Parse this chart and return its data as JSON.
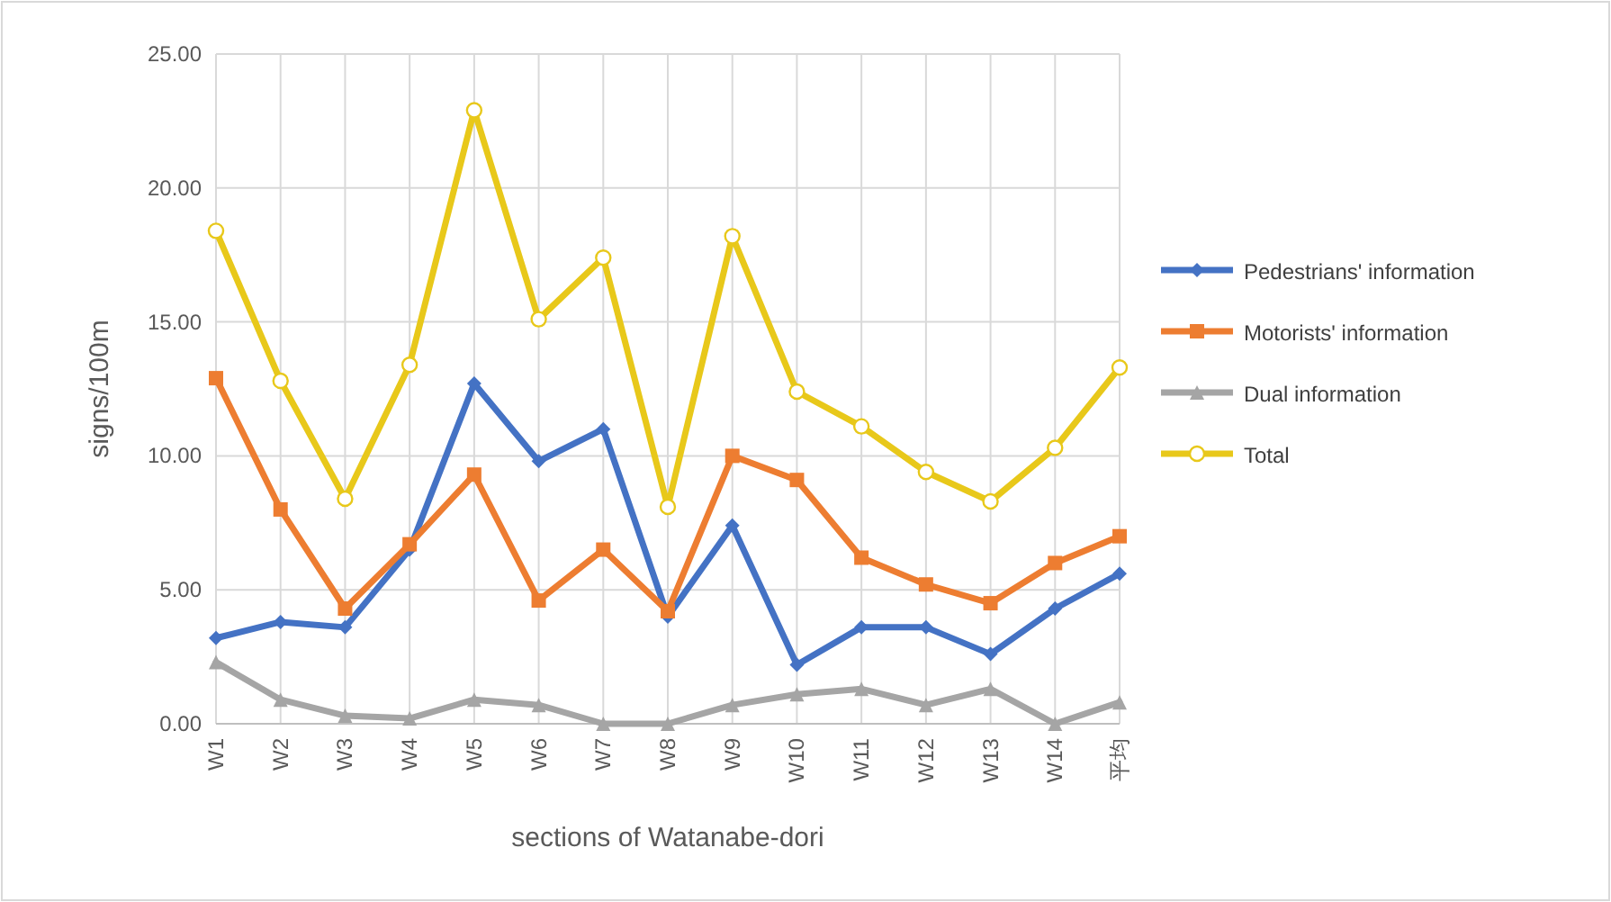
{
  "chart_data": {
    "type": "line",
    "xlabel": "sections of Watanabe-dori",
    "ylabel": "signs/100m",
    "categories": [
      "W1",
      "W2",
      "W3",
      "W4",
      "W5",
      "W6",
      "W7",
      "W8",
      "W9",
      "W10",
      "W11",
      "W12",
      "W13",
      "W14",
      "平均"
    ],
    "ylim": [
      0,
      25
    ],
    "yticks": [
      {
        "value": 0,
        "label": "0.00"
      },
      {
        "value": 5,
        "label": "5.00"
      },
      {
        "value": 10,
        "label": "10.00"
      },
      {
        "value": 15,
        "label": "15.00"
      },
      {
        "value": 20,
        "label": "20.00"
      },
      {
        "value": 25,
        "label": "25.00"
      }
    ],
    "grid": true,
    "legend": "right",
    "series": [
      {
        "name": "Pedestrians' information",
        "color": "#4472c4",
        "marker": "diamond",
        "values": [
          3.2,
          3.8,
          3.6,
          6.5,
          12.7,
          9.8,
          11.0,
          4.0,
          7.4,
          2.2,
          3.6,
          3.6,
          2.6,
          4.3,
          5.6
        ]
      },
      {
        "name": "Motorists' information",
        "color": "#ed7d31",
        "marker": "square",
        "values": [
          12.9,
          8.0,
          4.3,
          6.7,
          9.3,
          4.6,
          6.5,
          4.2,
          10.0,
          9.1,
          6.2,
          5.2,
          4.5,
          6.0,
          7.0
        ]
      },
      {
        "name": "Dual information",
        "color": "#a5a5a5",
        "marker": "triangle",
        "values": [
          2.3,
          0.9,
          0.3,
          0.2,
          0.9,
          0.7,
          0.0,
          0.0,
          0.7,
          1.1,
          1.3,
          0.7,
          1.3,
          0.0,
          0.8
        ]
      },
      {
        "name": "Total",
        "color": "#e8c81a",
        "marker": "circle",
        "values": [
          18.4,
          12.8,
          8.4,
          13.4,
          22.9,
          15.1,
          17.4,
          8.1,
          18.2,
          12.4,
          11.1,
          9.4,
          8.3,
          10.3,
          13.3
        ]
      }
    ]
  }
}
